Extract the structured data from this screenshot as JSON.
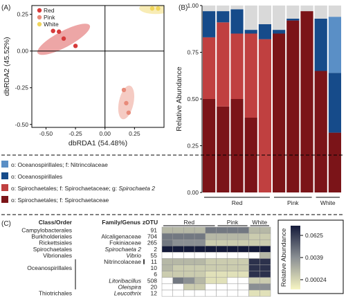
{
  "chart_data": [
    {
      "panel": "(A)",
      "type": "scatter",
      "xlabel": "dbRDA1 (54.48%)",
      "ylabel": "dbRDA2 (45.52%)",
      "xlim": [
        -0.62,
        0.5
      ],
      "ylim": [
        -0.52,
        0.31
      ],
      "xticks": [
        -0.5,
        -0.25,
        0.0,
        0.25
      ],
      "xtick_labels": [
        "-0.50",
        "-0.25",
        "0.00",
        "0.25"
      ],
      "yticks": [
        -0.5,
        -0.25,
        0.0,
        0.25
      ],
      "ytick_labels": [
        "-0.50",
        "-0.25",
        "0.00",
        "0.25"
      ],
      "legend_position": "top-left",
      "series": [
        {
          "name": "Red",
          "color": "#d63a3a",
          "points": [
            [
              -0.44,
              0.137
            ],
            [
              -0.39,
              0.132
            ],
            [
              -0.35,
              0.085
            ],
            [
              -0.25,
              0.035
            ]
          ],
          "ellipse": {
            "cx": -0.35,
            "cy": 0.08,
            "rx": 0.25,
            "ry": 0.055,
            "angle": -28
          }
        },
        {
          "name": "Pink",
          "color": "#e88b7a",
          "points": [
            [
              0.16,
              -0.265
            ],
            [
              0.18,
              -0.355
            ],
            [
              0.2,
              -0.42
            ]
          ],
          "ellipse": {
            "cx": 0.18,
            "cy": -0.35,
            "rx": 0.145,
            "ry": 0.05,
            "angle": -78
          }
        },
        {
          "name": "White",
          "color": "#f0d55a",
          "points": [
            [
              0.4,
              0.29
            ],
            [
              0.45,
              0.29
            ]
          ],
          "ellipse": {
            "cx": 0.43,
            "cy": 0.292,
            "rx": 0.14,
            "ry": 0.04,
            "angle": 0
          }
        }
      ]
    },
    {
      "panel": "(B)",
      "type": "bar",
      "stacked": true,
      "ylabel": "Relative Abundance",
      "ylim": [
        0,
        1
      ],
      "yticks": [
        0,
        0.25,
        0.5,
        0.75,
        1
      ],
      "ytick_labels": [
        "0.00",
        "0.25",
        "0.50",
        "0.75",
        "1.00"
      ],
      "groups": [
        {
          "label": "Red",
          "bars": [
            0,
            4
          ]
        },
        {
          "label": "Pink",
          "bars": [
            5,
            7
          ]
        },
        {
          "label": "White",
          "bars": [
            8,
            9
          ]
        }
      ],
      "series": [
        {
          "name": "o: Spirochaetales; f: Spirochaetaceae",
          "color": "#7b1418",
          "values": [
            0.5,
            0.46,
            0.5,
            0.4,
            0.0,
            0.85,
            0.92,
            0.97,
            0.65,
            0.32
          ]
        },
        {
          "name": "o: Spirochaetales; f: Spirochaetaceae; g: Spirochaeta 2",
          "color": "#c04040",
          "values": [
            0.33,
            0.45,
            0.35,
            0.45,
            0.82,
            0.0,
            0.0,
            0.0,
            0.0,
            0.0
          ]
        },
        {
          "name": "o: Oceanospirillales",
          "color": "#164b8a",
          "values": [
            0.14,
            0.06,
            0.13,
            0.02,
            0.08,
            0.02,
            0.01,
            0.0,
            0.28,
            0.32
          ]
        },
        {
          "name": "o: Oceanospirillales; f: Nitrincolaceae",
          "color": "#5a8fc6",
          "values": [
            0.0,
            0.0,
            0.0,
            0.0,
            0.0,
            0.0,
            0.0,
            0.0,
            0.0,
            0.3
          ]
        },
        {
          "name": "Other",
          "color": "#d9d9d9",
          "values": [
            0.03,
            0.03,
            0.02,
            0.13,
            0.1,
            0.13,
            0.07,
            0.03,
            0.07,
            0.06
          ]
        }
      ]
    },
    {
      "panel": "(C)",
      "type": "heatmap",
      "column_headers": [
        "Class/Order",
        "Family/Genus",
        "zOTU"
      ],
      "groups": [
        "Red",
        "Pink",
        "White"
      ],
      "group_columns": [
        [
          0,
          4
        ],
        [
          5,
          7
        ],
        [
          8,
          9
        ]
      ],
      "legend_title": "Relative Abundance",
      "legend_tick_labels": [
        "0.0625",
        "0.0039",
        "0.00024"
      ],
      "color_low": "#f7f5c2",
      "color_high": "#141a3a",
      "rows": [
        {
          "order": "Campylobacterales",
          "family": "",
          "zotu": "91",
          "values": [
            0.3,
            0.3,
            0.3,
            0.3,
            0.6,
            0.6,
            0.6,
            0.6,
            0.3,
            0.3
          ]
        },
        {
          "order": "Burkholderiales",
          "family": "Alcaligenaceae",
          "zotu": "704",
          "values": [
            0.6,
            0.6,
            0.6,
            0.6,
            0.3,
            0.3,
            0.3,
            0.3,
            0.2,
            0.2
          ]
        },
        {
          "order": "Rickettsiales",
          "family": "Fokiniaceae",
          "zotu": "265",
          "values": [
            0.6,
            0.5,
            0.5,
            0.5,
            0.2,
            0.2,
            0.2,
            0.2,
            0.2,
            0.2
          ]
        },
        {
          "order": "Spirochaetales",
          "family": "Spirochaeta 2",
          "zotu": "2",
          "values": [
            1.0,
            1.0,
            1.0,
            1.0,
            1.0,
            1.0,
            1.0,
            1.0,
            1.0,
            1.0
          ]
        },
        {
          "order": "Vibrionales",
          "family": "Vibrio",
          "zotu": "55",
          "values": [
            0.0,
            0.0,
            0.0,
            0.0,
            0.0,
            0.0,
            0.0,
            0.0,
            0.0,
            0.3
          ]
        },
        {
          "order": "",
          "family": "Nitrincolaceae",
          "zotu": "11",
          "values": [
            0.3,
            0.3,
            0.3,
            0.3,
            0.2,
            0.2,
            0.2,
            0.2,
            0.9,
            0.9
          ]
        },
        {
          "order": "Oceanospirillales",
          "family": "",
          "zotu": "10",
          "values": [
            0.3,
            0.2,
            0.2,
            0.2,
            0.2,
            0.2,
            0.2,
            0.2,
            0.9,
            0.9
          ]
        },
        {
          "order": "",
          "family": "",
          "zotu": "6",
          "values": [
            0.2,
            0.2,
            0.2,
            0.2,
            0.1,
            0.1,
            0.1,
            0.1,
            0.9,
            0.9
          ]
        },
        {
          "order": "",
          "family": "Litoribacillus",
          "zotu": "508",
          "values": [
            0.0,
            0.6,
            0.5,
            0.3,
            0.1,
            0.1,
            0.0,
            0.0,
            0.2,
            0.2
          ]
        },
        {
          "order": "",
          "family": "Oleispira",
          "zotu": "20",
          "values": [
            0.0,
            0.0,
            0.2,
            0.2,
            0.0,
            0.0,
            0.0,
            0.0,
            0.5,
            0.5
          ]
        },
        {
          "order": "Thiotrichales",
          "family": "Leucothrix",
          "zotu": "12",
          "values": [
            0.0,
            0.0,
            0.0,
            0.0,
            0.0,
            0.0,
            0.0,
            0.0,
            0.1,
            0.1
          ]
        }
      ]
    }
  ],
  "legend_mid": {
    "items": [
      {
        "label": "o: Oceanospirillales; f: Nitrincolaceae",
        "color": "#5a8fc6"
      },
      {
        "label": "o: Oceanospirillales",
        "color": "#164b8a"
      },
      {
        "label": "o: Spirochaetales; f: Spirochaetaceae; g: ",
        "italic": "Spirochaeta 2",
        "color": "#c04040"
      },
      {
        "label": "o: Spirochaetales; f: Spirochaetaceae",
        "color": "#7b1418"
      }
    ]
  }
}
